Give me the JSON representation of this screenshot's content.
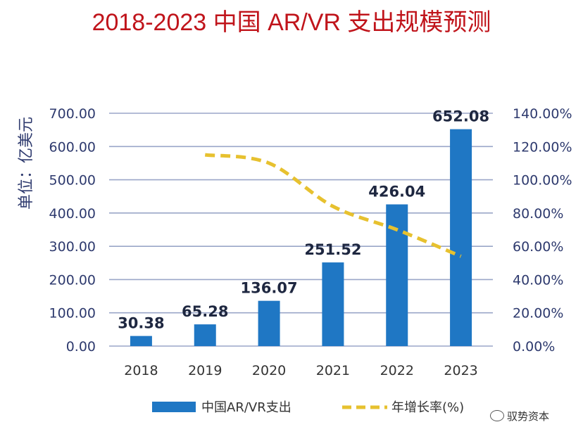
{
  "title": "2018-2023 中国 AR/VR 支出规模预测",
  "chart_data": {
    "type": "bar+line",
    "categories": [
      "2018",
      "2019",
      "2020",
      "2021",
      "2022",
      "2023"
    ],
    "series": [
      {
        "name": "中国AR/VR支出",
        "kind": "bar",
        "axis": "left",
        "values": [
          30.38,
          65.28,
          136.07,
          251.52,
          426.04,
          652.08
        ],
        "labels": [
          "30.38",
          "65.28",
          "136.07",
          "251.52",
          "426.04",
          "652.08"
        ],
        "color": "#1f77c4"
      },
      {
        "name": "年增长率(%)",
        "kind": "line",
        "style": "dashed",
        "axis": "right",
        "x": [
          "2019",
          "2020",
          "2021",
          "2022",
          "2023"
        ],
        "values": [
          115,
          110,
          84,
          70,
          54
        ],
        "color": "#e7c12f"
      }
    ],
    "ylabel": "单位：亿美元",
    "ylim": [
      0,
      700
    ],
    "yticks": [
      "0.00",
      "100.00",
      "200.00",
      "300.00",
      "400.00",
      "500.00",
      "600.00",
      "700.00"
    ],
    "y2lim": [
      0,
      140
    ],
    "y2ticks": [
      "0.00%",
      "20.00%",
      "40.00%",
      "60.00%",
      "80.00%",
      "100.00%",
      "120.00%",
      "140.00%"
    ],
    "grid": true,
    "legend": "bottom"
  },
  "watermark": "驭势资本",
  "colors": {
    "title": "#c0141b",
    "axis_text": "#2e3a6e",
    "grid": "#9aa6c8",
    "bar": "#1f77c4",
    "line": "#e7c12f"
  }
}
